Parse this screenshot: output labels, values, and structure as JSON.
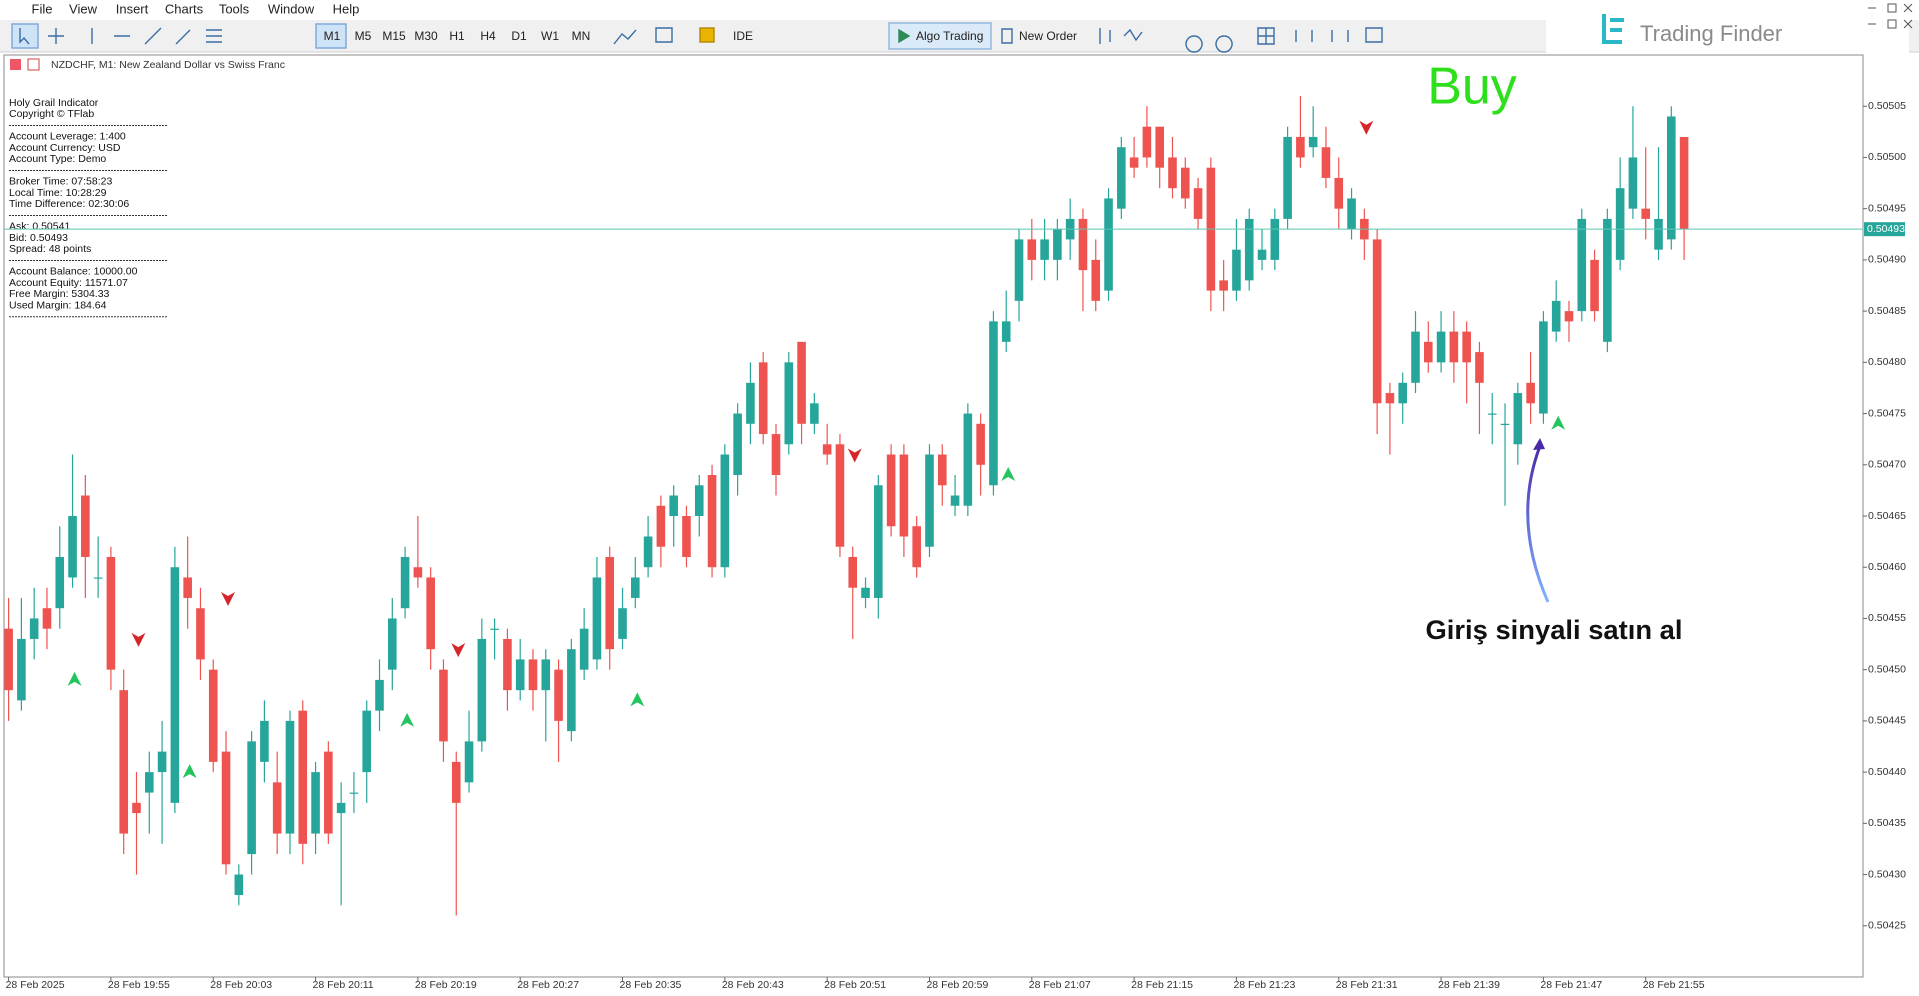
{
  "menu": [
    "File",
    "View",
    "Insert",
    "Charts",
    "Tools",
    "Window",
    "Help"
  ],
  "toolbar": {
    "timeframes": [
      "M1",
      "M5",
      "M15",
      "M30",
      "H1",
      "H4",
      "D1",
      "W1",
      "MN"
    ],
    "ide": "IDE",
    "algo": "Algo Trading",
    "order": "New Order"
  },
  "logo": "Trading Finder",
  "info_panel": {
    "lines": [
      "Holy Grail Indicator",
      "Copyright © TFlab",
      "Account Leverage: 1:400",
      "Account Currency: USD",
      "Account Type: Demo",
      "Broker Time: 07:58:23",
      "Local Time: 10:28:29",
      "Time Difference: 02:30:06",
      "Ask: 0.50541",
      "Bid: 0.50493",
      "Spread: 48 points",
      "Account Balance: 10000.00",
      "Account Equity: 11571.07",
      "Free Margin: 5304.33",
      "Used Margin: 184.64"
    ]
  },
  "chart_data": {
    "type": "candlestick",
    "title": "NZDCHF, M1:  New Zealand Dollar vs Swiss Franc",
    "categories": [
      "28 Feb 2025",
      null,
      null,
      null,
      null,
      null,
      null,
      null,
      "28 Feb 19:55",
      null,
      null,
      null,
      null,
      null,
      null,
      null,
      "28 Feb 20:03",
      null,
      null,
      null,
      null,
      null,
      null,
      null,
      "28 Feb 20:11",
      null,
      null,
      null,
      null,
      null,
      null,
      null,
      "28 Feb 20:19",
      null,
      null,
      null,
      null,
      null,
      null,
      null,
      "28 Feb 20:27",
      null,
      null,
      null,
      null,
      null,
      null,
      null,
      "28 Feb 20:35",
      null,
      null,
      null,
      null,
      null,
      null,
      null,
      "28 Feb 20:43",
      null,
      null,
      null,
      null,
      null,
      null,
      null,
      "28 Feb 20:51",
      null,
      null,
      null,
      null,
      null,
      null,
      null,
      "28 Feb 20:59",
      null,
      null,
      null,
      null,
      null,
      null,
      null,
      "28 Feb 21:07",
      null,
      null,
      null,
      null,
      null,
      null,
      null,
      "28 Feb 21:15",
      null,
      null,
      null,
      null,
      null,
      null,
      null,
      "28 Feb 21:23",
      null,
      null,
      null,
      null,
      null,
      null,
      null,
      "28 Feb 21:31",
      null,
      null,
      null,
      null,
      null,
      null,
      null,
      "28 Feb 21:39",
      null,
      null,
      null,
      null,
      null,
      null,
      null,
      "28 Feb 21:47",
      null,
      null,
      null,
      null,
      null,
      null,
      null,
      "28 Feb 21:55",
      null,
      null,
      null
    ],
    "open": [
      0.50454,
      0.50447,
      0.50453,
      0.50456,
      0.50456,
      0.50459,
      0.50467,
      0.50459,
      0.50461,
      0.50448,
      0.50437,
      0.50438,
      0.5044,
      0.50437,
      0.50459,
      0.50456,
      0.5045,
      0.50442,
      0.50428,
      0.50432,
      0.50441,
      0.50439,
      0.50434,
      0.50446,
      0.50434,
      0.50442,
      0.50436,
      0.50438,
      0.5044,
      0.50446,
      0.5045,
      0.50456,
      0.5046,
      0.50459,
      0.5045,
      0.50441,
      0.50439,
      0.50443,
      0.50454,
      0.50453,
      0.50448,
      0.50451,
      0.50448,
      0.5045,
      0.50444,
      0.5045,
      0.50451,
      0.50461,
      0.50453,
      0.50457,
      0.5046,
      0.50466,
      0.50465,
      0.50465,
      0.50465,
      0.50469,
      0.5046,
      0.50469,
      0.50474,
      0.5048,
      0.50473,
      0.50472,
      0.50482,
      0.50474,
      0.50472,
      0.50472,
      0.50461,
      0.50457,
      0.50457,
      0.50471,
      0.50471,
      0.50464,
      0.50462,
      0.50471,
      0.50466,
      0.50466,
      0.50474,
      0.50468,
      0.50482,
      0.50486,
      0.50492,
      0.5049,
      0.5049,
      0.50492,
      0.50494,
      0.5049,
      0.50487,
      0.50495,
      0.505,
      0.50503,
      0.50503,
      0.505,
      0.50499,
      0.50497,
      0.50499,
      0.50488,
      0.50487,
      0.50488,
      0.5049,
      0.5049,
      0.50494,
      0.50502,
      0.50501,
      0.50501,
      0.50498,
      0.50493,
      0.50494,
      0.50492,
      0.50477,
      0.50476,
      0.50478,
      0.50482,
      0.5048,
      0.50483,
      0.50483,
      0.50481,
      0.50475,
      0.50474,
      0.50472,
      0.50478,
      0.50475,
      0.50483,
      0.50485,
      0.50485,
      0.5049,
      0.50482,
      0.5049,
      0.50495,
      0.50495,
      0.50491,
      0.50492,
      0.50502
    ],
    "high": [
      0.50457,
      0.50457,
      0.50458,
      0.50458,
      0.50464,
      0.50471,
      0.50469,
      0.50463,
      0.50462,
      0.5045,
      0.5044,
      0.50442,
      0.50445,
      0.50462,
      0.50463,
      0.50458,
      0.50451,
      0.50444,
      0.50431,
      0.50444,
      0.50447,
      0.50442,
      0.50446,
      0.50447,
      0.50441,
      0.50443,
      0.50439,
      0.5044,
      0.50447,
      0.50451,
      0.50457,
      0.50462,
      0.50465,
      0.5046,
      0.50451,
      0.50442,
      0.50446,
      0.50455,
      0.50455,
      0.50454,
      0.50453,
      0.50452,
      0.50452,
      0.50451,
      0.50453,
      0.50456,
      0.50461,
      0.50462,
      0.50458,
      0.50461,
      0.50465,
      0.50467,
      0.50468,
      0.50466,
      0.50469,
      0.5047,
      0.50472,
      0.50476,
      0.5048,
      0.50481,
      0.50474,
      0.50481,
      0.50482,
      0.50477,
      0.50474,
      0.50473,
      0.50462,
      0.50459,
      0.50469,
      0.50472,
      0.50472,
      0.50465,
      0.50472,
      0.50472,
      0.50469,
      0.50476,
      0.50475,
      0.50485,
      0.50487,
      0.50493,
      0.50494,
      0.50494,
      0.50494,
      0.50496,
      0.50495,
      0.50492,
      0.50497,
      0.50502,
      0.50502,
      0.50505,
      0.50503,
      0.50502,
      0.505,
      0.50498,
      0.505,
      0.5049,
      0.50494,
      0.50495,
      0.50493,
      0.50495,
      0.50503,
      0.50506,
      0.50505,
      0.50503,
      0.505,
      0.50497,
      0.50495,
      0.50493,
      0.50478,
      0.50479,
      0.50485,
      0.50484,
      0.50485,
      0.50485,
      0.50484,
      0.50482,
      0.50477,
      0.50476,
      0.50478,
      0.50481,
      0.50485,
      0.50488,
      0.50486,
      0.50495,
      0.50491,
      0.50495,
      0.505,
      0.50505,
      0.50501,
      0.50501,
      0.50505,
      0.50502
    ],
    "low": [
      0.50445,
      0.50446,
      0.50451,
      0.50452,
      0.50454,
      0.50458,
      0.50457,
      0.50457,
      0.50448,
      0.50432,
      0.5043,
      0.50434,
      0.50433,
      0.50436,
      0.50454,
      0.50449,
      0.5044,
      0.5043,
      0.50427,
      0.5043,
      0.50439,
      0.50432,
      0.50432,
      0.50431,
      0.50432,
      0.50433,
      0.50427,
      0.50436,
      0.50437,
      0.50444,
      0.50448,
      0.50455,
      0.50458,
      0.5045,
      0.50441,
      0.50426,
      0.50438,
      0.50442,
      0.50451,
      0.50446,
      0.50447,
      0.50446,
      0.50443,
      0.50441,
      0.50443,
      0.50449,
      0.5045,
      0.5045,
      0.50452,
      0.50456,
      0.50459,
      0.5046,
      0.50462,
      0.5046,
      0.50463,
      0.50459,
      0.50459,
      0.50467,
      0.50472,
      0.50472,
      0.50467,
      0.50471,
      0.50472,
      0.50473,
      0.5047,
      0.50461,
      0.50453,
      0.50456,
      0.50455,
      0.50463,
      0.50461,
      0.50459,
      0.50461,
      0.50466,
      0.50465,
      0.50465,
      0.50467,
      0.50467,
      0.50481,
      0.50484,
      0.50488,
      0.50488,
      0.50488,
      0.5049,
      0.50485,
      0.50485,
      0.50486,
      0.50494,
      0.50498,
      0.50499,
      0.50497,
      0.50496,
      0.50495,
      0.50493,
      0.50485,
      0.50485,
      0.50486,
      0.50487,
      0.50489,
      0.50489,
      0.50493,
      0.50499,
      0.505,
      0.50497,
      0.50493,
      0.50492,
      0.5049,
      0.50473,
      0.50471,
      0.50474,
      0.50477,
      0.50479,
      0.50479,
      0.50478,
      0.50476,
      0.50473,
      0.50472,
      0.50466,
      0.5047,
      0.50474,
      0.50474,
      0.50482,
      0.50482,
      0.50484,
      0.50484,
      0.50481,
      0.50489,
      0.50494,
      0.50492,
      0.5049,
      0.50491,
      0.5049
    ],
    "close": [
      0.50448,
      0.50453,
      0.50455,
      0.50454,
      0.50461,
      0.50465,
      0.50461,
      0.50459,
      0.5045,
      0.50434,
      0.50436,
      0.5044,
      0.50442,
      0.5046,
      0.50457,
      0.50451,
      0.50441,
      0.50431,
      0.5043,
      0.50443,
      0.50445,
      0.50434,
      0.50445,
      0.50433,
      0.5044,
      0.50434,
      0.50437,
      0.50438,
      0.50446,
      0.50449,
      0.50455,
      0.50461,
      0.50459,
      0.50452,
      0.50443,
      0.50437,
      0.50443,
      0.50453,
      0.50454,
      0.50448,
      0.50451,
      0.50448,
      0.50451,
      0.50445,
      0.50452,
      0.50454,
      0.50459,
      0.50452,
      0.50456,
      0.50459,
      0.50463,
      0.50462,
      0.50467,
      0.50461,
      0.50468,
      0.5046,
      0.50471,
      0.50475,
      0.50478,
      0.50473,
      0.50469,
      0.5048,
      0.50474,
      0.50476,
      0.50471,
      0.50462,
      0.50458,
      0.50458,
      0.50468,
      0.50464,
      0.50463,
      0.5046,
      0.50471,
      0.50468,
      0.50467,
      0.50475,
      0.5047,
      0.50484,
      0.50484,
      0.50492,
      0.5049,
      0.50492,
      0.50493,
      0.50494,
      0.50489,
      0.50486,
      0.50496,
      0.50501,
      0.50499,
      0.505,
      0.50499,
      0.50497,
      0.50496,
      0.50494,
      0.50487,
      0.50487,
      0.50491,
      0.50494,
      0.50491,
      0.50494,
      0.50502,
      0.505,
      0.50502,
      0.50498,
      0.50495,
      0.50496,
      0.50492,
      0.50476,
      0.50476,
      0.50478,
      0.50483,
      0.5048,
      0.50483,
      0.5048,
      0.5048,
      0.50478,
      0.50475,
      0.50474,
      0.50477,
      0.50476,
      0.50484,
      0.50486,
      0.50484,
      0.50494,
      0.50485,
      0.50494,
      0.50497,
      0.505,
      0.50494,
      0.50494,
      0.50504,
      0.50493
    ],
    "up_color": "#26a69a",
    "down_color": "#ef5350",
    "ylim": [
      0.5042,
      0.5051
    ],
    "yticks": [
      0.50425,
      {
        "value": 0.5043,
        "label": "0.50430"
      },
      0.50435,
      {
        "value": 0.5044,
        "label": "0.50440"
      },
      0.50445,
      {
        "value": 0.5045,
        "label": "0.50450"
      },
      0.50455,
      {
        "value": 0.5046,
        "label": "0.50460"
      },
      0.50465,
      {
        "value": 0.5047,
        "label": "0.50470"
      },
      0.50475,
      {
        "value": 0.5048,
        "label": "0.50480"
      },
      0.50485,
      {
        "value": 0.5049,
        "label": "0.50490"
      },
      0.50495,
      {
        "value": 0.505,
        "label": "0.50500"
      },
      0.50505
    ],
    "grid": false,
    "current_price": 0.50493,
    "buy_arrows": {
      "x": [
        5,
        14,
        31,
        49,
        78,
        121
      ],
      "values": [
        0.50449,
        0.5044,
        0.50445,
        0.50447,
        0.50469,
        0.50474
      ],
      "color": "#22c55e"
    },
    "sell_arrows": {
      "x": [
        10,
        17,
        35,
        66,
        106
      ],
      "values": [
        0.50453,
        0.50457,
        0.50452,
        0.50471,
        0.50503
      ],
      "color": "#d7262b"
    },
    "annotations": {
      "signal": "Buy",
      "note": "Giriş sinyali satın al"
    }
  }
}
